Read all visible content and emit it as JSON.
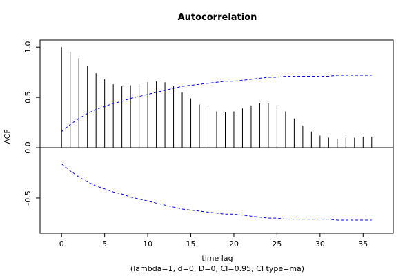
{
  "chart_data": {
    "type": "bar",
    "title": "Autocorrelation",
    "xlabel": "time lag",
    "subtitle": "(lambda=1, d=0, D=0, CI=0.95, CI type=ma)",
    "ylabel": "ACF",
    "xlim": [
      -2.5,
      38.5
    ],
    "ylim": [
      -0.85,
      1.07
    ],
    "x_ticks": [
      0,
      5,
      10,
      15,
      20,
      25,
      30,
      35
    ],
    "x_tick_labels": [
      "0",
      "5",
      "10",
      "15",
      "20",
      "25",
      "30",
      "35"
    ],
    "y_ticks": [
      -0.5,
      0.0,
      0.5,
      1.0
    ],
    "y_tick_labels": [
      "-0.5",
      "0.0",
      "0.5",
      "1.0"
    ],
    "lags": [
      0,
      1,
      2,
      3,
      4,
      5,
      6,
      7,
      8,
      9,
      10,
      11,
      12,
      13,
      14,
      15,
      16,
      17,
      18,
      19,
      20,
      21,
      22,
      23,
      24,
      25,
      26,
      27,
      28,
      29,
      30,
      31,
      32,
      33,
      34,
      35,
      36
    ],
    "acf": [
      1.0,
      0.95,
      0.89,
      0.81,
      0.74,
      0.68,
      0.63,
      0.61,
      0.62,
      0.63,
      0.65,
      0.66,
      0.65,
      0.61,
      0.55,
      0.49,
      0.43,
      0.38,
      0.36,
      0.35,
      0.36,
      0.39,
      0.42,
      0.44,
      0.44,
      0.41,
      0.36,
      0.29,
      0.22,
      0.16,
      0.12,
      0.1,
      0.09,
      0.1,
      0.1,
      0.11,
      0.11
    ],
    "ci_upper": [
      0.16,
      0.23,
      0.29,
      0.34,
      0.38,
      0.41,
      0.44,
      0.46,
      0.49,
      0.51,
      0.53,
      0.55,
      0.57,
      0.59,
      0.61,
      0.62,
      0.63,
      0.64,
      0.65,
      0.66,
      0.66,
      0.67,
      0.68,
      0.69,
      0.7,
      0.7,
      0.71,
      0.71,
      0.71,
      0.71,
      0.71,
      0.71,
      0.72,
      0.72,
      0.72,
      0.72,
      0.72
    ],
    "ci_lower": [
      -0.16,
      -0.23,
      -0.29,
      -0.34,
      -0.38,
      -0.41,
      -0.44,
      -0.46,
      -0.49,
      -0.51,
      -0.53,
      -0.55,
      -0.57,
      -0.59,
      -0.61,
      -0.62,
      -0.63,
      -0.64,
      -0.65,
      -0.66,
      -0.66,
      -0.67,
      -0.68,
      -0.69,
      -0.7,
      -0.7,
      -0.71,
      -0.71,
      -0.71,
      -0.71,
      -0.71,
      -0.71,
      -0.72,
      -0.72,
      -0.72,
      -0.72,
      -0.72
    ],
    "ci_color": "#0000ff",
    "bar_color": "#000000",
    "zero_line": true,
    "grid": false
  }
}
